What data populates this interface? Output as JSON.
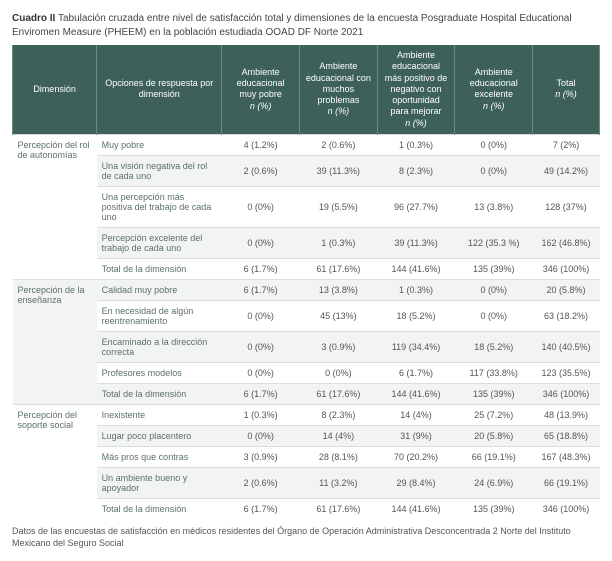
{
  "title": {
    "lead": "Cuadro II",
    "rest": " Tabulación cruzada entre nivel de satisfacción total y dimensiones de la encuesta Posgraduate Hospital Educational Enviromen Measure (PHEEM) en la población estudiada OOAD DF Norte 2021"
  },
  "columns": {
    "dim": "Dimensión",
    "opt": "Opciones de respuesta por dimensión",
    "c1": "Ambiente educacional muy pobre",
    "c2": "Ambiente educacional con muchos problemas",
    "c3": "Ambiente educacional más positivo de negativo con oportunidad para mejorar",
    "c4": "Ambiente educacional excelente",
    "tot": "Total",
    "npc": "n (%)"
  },
  "sections": [
    {
      "dim": "Percepción del rol de autonomías",
      "rows": [
        {
          "opt": "Muy pobre",
          "c1": "4 (1.2%)",
          "c2": "2  (0.6%)",
          "c3": "1 (0.3%)",
          "c4": "0  (0%)",
          "tot": "7  (2%)"
        },
        {
          "opt": "Una visión negativa del rol de cada uno",
          "c1": "2 (0.6%)",
          "c2": "39 (11.3%)",
          "c3": "8 (2.3%)",
          "c4": "0  (0%)",
          "tot": "49 (14.2%)"
        },
        {
          "opt": "Una percepción más positiva del trabajo de cada uno",
          "c1": "0 (0%)",
          "c2": "19  (5.5%)",
          "c3": "96 (27.7%)",
          "c4": "13  (3.8%)",
          "tot": "128 (37%)"
        },
        {
          "opt": "Percepción excelente del trabajo de cada uno",
          "c1": "0 (0%)",
          "c2": "1  (0.3%)",
          "c3": "39 (11.3%)",
          "c4": "122 (35.3 %)",
          "tot": "162 (46.8%)"
        },
        {
          "opt": "Total de la dimensión",
          "c1": "6 (1.7%)",
          "c2": "61 (17.6%)",
          "c3": "144 (41.6%)",
          "c4": "135 (39%)",
          "tot": "346 (100%)",
          "total": true
        }
      ]
    },
    {
      "dim": "Percepción de la enseñanza",
      "rows": [
        {
          "opt": "Calidad muy pobre",
          "c1": "6 (1.7%)",
          "c2": "13  (3.8%)",
          "c3": "1 (0.3%)",
          "c4": "0  (0%)",
          "tot": "20  (5.8%)"
        },
        {
          "opt": "En necesidad de algún reentrenamiento",
          "c1": "0 (0%)",
          "c2": "45 (13%)",
          "c3": "18 (5.2%)",
          "c4": "0  (0%)",
          "tot": "63 (18.2%)"
        },
        {
          "opt": "Encaminado a la dirección correcta",
          "c1": "0 (0%)",
          "c2": "3  (0.9%)",
          "c3": "119 (34.4%)",
          "c4": "18  (5.2%)",
          "tot": "140 (40.5%)"
        },
        {
          "opt": "Profesores modelos",
          "c1": "0 (0%)",
          "c2": "0  (0%)",
          "c3": "6 (1.7%)",
          "c4": "117 (33.8%)",
          "tot": "123 (35.5%)"
        },
        {
          "opt": "Total de la dimensión",
          "c1": "6 (1.7%)",
          "c2": "61 (17.6%)",
          "c3": "144 (41.6%)",
          "c4": "135 (39%)",
          "tot": "346 (100%)",
          "total": true
        }
      ]
    },
    {
      "dim": "Percepción del soporte social",
      "rows": [
        {
          "opt": "Inexistente",
          "c1": "1 (0.3%)",
          "c2": "8  (2.3%)",
          "c3": "14 (4%)",
          "c4": "25  (7.2%)",
          "tot": "48 (13.9%)"
        },
        {
          "opt": "Lugar poco placentero",
          "c1": "0 (0%)",
          "c2": "14  (4%)",
          "c3": "31 (9%)",
          "c4": "20  (5.8%)",
          "tot": "65 (18.8%)"
        },
        {
          "opt": "Más pros que contras",
          "c1": "3 (0.9%)",
          "c2": "28  (8.1%)",
          "c3": "70 (20.2%)",
          "c4": "66 (19.1%)",
          "tot": "167 (48.3%)"
        },
        {
          "opt": "Un ambiente bueno y apoyador",
          "c1": "2 (0.6%)",
          "c2": "11  (3.2%)",
          "c3": "29 (8.4%)",
          "c4": "24  (6.9%)",
          "tot": "66 (19.1%)"
        },
        {
          "opt": "Total de la dimensión",
          "c1": "6 (1.7%)",
          "c2": "61 (17.6%)",
          "c3": "144 (41.6%)",
          "c4": "135 (39%)",
          "tot": "346 (100%)",
          "total": true
        }
      ]
    }
  ],
  "footnote": "Datos de las encuestas de satisfacción en médicos residentes del Órgano de Operación Administrativa Desconcentrada 2 Norte del Instituto Mexicano del Seguro Social",
  "style": {
    "header_bg": "#3d6059",
    "header_fg": "#ffffff",
    "zebra_bg": "#f1f4f3",
    "border": "#d8dedc",
    "text": "#555555",
    "dim_text": "#5c7068"
  }
}
